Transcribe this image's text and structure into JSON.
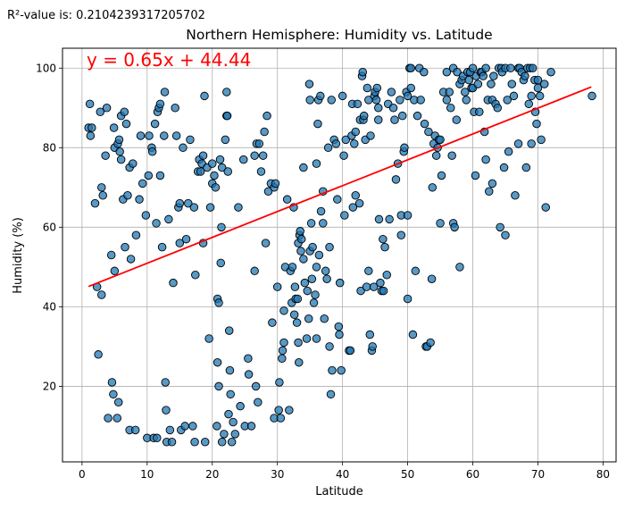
{
  "r2_text": "R²-value is: 0.2104239317205702",
  "chart_data": {
    "type": "scatter",
    "title": "Northern Hemisphere: Humidity vs. Latitude",
    "xlabel": "Latitude",
    "ylabel": "Humidity (%)",
    "xlim": [
      -3,
      82
    ],
    "ylim": [
      1,
      105
    ],
    "xticks": [
      0,
      10,
      20,
      30,
      40,
      50,
      60,
      70,
      80
    ],
    "yticks": [
      20,
      40,
      60,
      80,
      100
    ],
    "grid": true,
    "annotation": "y = 0.65x + 44.44",
    "regression": {
      "slope": 0.65,
      "intercept": 44.44,
      "x_range": [
        1,
        78.2
      ],
      "color": "#ff0000"
    },
    "point_color": "#1f77b4",
    "annotation_color": "#ff0000",
    "points": [
      [
        1,
        85
      ],
      [
        1.2,
        91
      ],
      [
        1.3,
        83
      ],
      [
        1.5,
        85
      ],
      [
        2,
        66
      ],
      [
        2.3,
        45
      ],
      [
        2.5,
        28
      ],
      [
        2.8,
        89
      ],
      [
        3,
        43
      ],
      [
        3,
        70
      ],
      [
        3.2,
        68
      ],
      [
        3.8,
        90
      ],
      [
        3.6,
        78
      ],
      [
        4,
        12
      ],
      [
        4.5,
        53
      ],
      [
        4.6,
        21
      ],
      [
        4.8,
        18
      ],
      [
        5,
        49
      ],
      [
        4.9,
        85
      ],
      [
        5,
        80
      ],
      [
        5.5,
        81
      ],
      [
        5.4,
        12
      ],
      [
        5.6,
        16
      ],
      [
        5.7,
        82
      ],
      [
        5.8,
        79
      ],
      [
        6,
        88
      ],
      [
        6,
        77
      ],
      [
        6.3,
        67
      ],
      [
        6.5,
        89
      ],
      [
        6.6,
        55
      ],
      [
        6.8,
        86
      ],
      [
        7,
        68
      ],
      [
        7.3,
        9
      ],
      [
        7.3,
        75
      ],
      [
        7.5,
        52
      ],
      [
        7.8,
        76
      ],
      [
        8.2,
        9
      ],
      [
        8.3,
        58
      ],
      [
        8.8,
        67
      ],
      [
        9,
        83
      ],
      [
        9.3,
        71
      ],
      [
        9.8,
        63
      ],
      [
        10,
        7
      ],
      [
        10.2,
        73
      ],
      [
        10.3,
        83
      ],
      [
        10.7,
        80
      ],
      [
        10.8,
        79
      ],
      [
        11,
        7
      ],
      [
        11.2,
        86
      ],
      [
        11.5,
        7
      ],
      [
        11.4,
        61
      ],
      [
        11.6,
        89
      ],
      [
        11.8,
        90
      ],
      [
        12,
        91
      ],
      [
        12,
        73
      ],
      [
        12.3,
        55
      ],
      [
        12.6,
        83
      ],
      [
        12.7,
        94
      ],
      [
        12.8,
        21
      ],
      [
        12.9,
        14
      ],
      [
        13,
        6
      ],
      [
        13.3,
        62
      ],
      [
        13.5,
        9
      ],
      [
        13.8,
        6
      ],
      [
        14,
        46
      ],
      [
        14.3,
        90
      ],
      [
        14.5,
        83
      ],
      [
        14.8,
        65
      ],
      [
        15,
        66
      ],
      [
        15,
        56
      ],
      [
        15.2,
        9
      ],
      [
        15.5,
        80
      ],
      [
        15.8,
        10
      ],
      [
        16,
        57
      ],
      [
        16.3,
        66
      ],
      [
        16.6,
        82
      ],
      [
        17,
        10
      ],
      [
        17.2,
        65
      ],
      [
        17.3,
        6
      ],
      [
        17.4,
        48
      ],
      [
        17.8,
        74
      ],
      [
        18,
        77
      ],
      [
        18.2,
        74
      ],
      [
        18.4,
        76
      ],
      [
        18.6,
        78
      ],
      [
        18.8,
        93
      ],
      [
        18.6,
        56
      ],
      [
        18.9,
        6
      ],
      [
        19.2,
        75
      ],
      [
        19.5,
        32
      ],
      [
        19.7,
        65
      ],
      [
        20,
        71
      ],
      [
        20,
        76
      ],
      [
        20.3,
        73
      ],
      [
        20.5,
        70
      ],
      [
        20.7,
        10
      ],
      [
        20.8,
        26
      ],
      [
        20.8,
        42
      ],
      [
        21,
        20
      ],
      [
        21,
        41
      ],
      [
        21.2,
        77
      ],
      [
        21.3,
        51
      ],
      [
        21.4,
        60
      ],
      [
        21.5,
        75
      ],
      [
        21.5,
        6
      ],
      [
        21.8,
        8
      ],
      [
        22,
        82
      ],
      [
        22.2,
        94
      ],
      [
        22.2,
        88
      ],
      [
        22.3,
        88
      ],
      [
        22.4,
        74
      ],
      [
        22.5,
        13
      ],
      [
        22.6,
        34
      ],
      [
        22.7,
        24
      ],
      [
        22.8,
        18
      ],
      [
        23,
        6
      ],
      [
        23.2,
        11
      ],
      [
        23.5,
        8
      ],
      [
        24,
        65
      ],
      [
        24.3,
        15
      ],
      [
        24.8,
        77
      ],
      [
        25,
        10
      ],
      [
        25.5,
        27
      ],
      [
        25.6,
        23
      ],
      [
        26,
        10
      ],
      [
        26.5,
        49
      ],
      [
        26.5,
        78
      ],
      [
        26.7,
        20
      ],
      [
        26.8,
        81
      ],
      [
        27,
        16
      ],
      [
        27.2,
        81
      ],
      [
        27.5,
        74
      ],
      [
        27.8,
        78
      ],
      [
        28,
        84
      ],
      [
        28.2,
        56
      ],
      [
        28.4,
        88
      ],
      [
        28.6,
        69
      ],
      [
        29,
        71
      ],
      [
        29.2,
        36
      ],
      [
        29.5,
        70
      ],
      [
        29.5,
        12
      ],
      [
        29.7,
        71
      ],
      [
        30,
        45
      ],
      [
        30.2,
        14
      ],
      [
        30.3,
        21
      ],
      [
        30.5,
        12
      ],
      [
        30.7,
        27
      ],
      [
        30.8,
        29
      ],
      [
        31,
        39
      ],
      [
        31,
        31
      ],
      [
        31.2,
        50
      ],
      [
        31.5,
        67
      ],
      [
        31.8,
        14
      ],
      [
        32,
        49
      ],
      [
        32.2,
        41
      ],
      [
        32.3,
        50
      ],
      [
        32.5,
        65
      ],
      [
        32.6,
        38
      ],
      [
        32.7,
        45
      ],
      [
        32.8,
        42
      ],
      [
        33,
        36
      ],
      [
        33.1,
        42
      ],
      [
        33.2,
        56
      ],
      [
        33.2,
        31
      ],
      [
        33.3,
        26
      ],
      [
        33.4,
        58
      ],
      [
        33.5,
        59
      ],
      [
        33.6,
        54
      ],
      [
        33.7,
        57
      ],
      [
        34,
        52
      ],
      [
        34,
        75
      ],
      [
        34.2,
        46
      ],
      [
        34.5,
        32
      ],
      [
        34.6,
        44
      ],
      [
        34.8,
        37
      ],
      [
        34.9,
        96
      ],
      [
        35,
        54
      ],
      [
        35,
        92
      ],
      [
        35.2,
        61
      ],
      [
        35.3,
        47
      ],
      [
        35.4,
        55
      ],
      [
        35.6,
        41
      ],
      [
        35.8,
        43
      ],
      [
        36,
        32
      ],
      [
        36,
        76
      ],
      [
        36,
        50
      ],
      [
        36.2,
        86
      ],
      [
        36.3,
        92
      ],
      [
        36.4,
        53
      ],
      [
        36.6,
        93
      ],
      [
        36.7,
        64
      ],
      [
        37,
        61
      ],
      [
        37,
        69
      ],
      [
        37.2,
        37
      ],
      [
        37.4,
        49
      ],
      [
        37.6,
        47
      ],
      [
        37.8,
        80
      ],
      [
        38,
        55
      ],
      [
        38,
        30
      ],
      [
        38.2,
        18
      ],
      [
        38.3,
        92
      ],
      [
        38.4,
        24
      ],
      [
        38.7,
        82
      ],
      [
        39,
        81
      ],
      [
        39.2,
        67
      ],
      [
        39.4,
        35
      ],
      [
        39.5,
        33
      ],
      [
        39.6,
        46
      ],
      [
        39.8,
        24
      ],
      [
        40,
        93
      ],
      [
        40.2,
        78
      ],
      [
        40.3,
        63
      ],
      [
        40.5,
        82
      ],
      [
        41,
        29
      ],
      [
        41.2,
        29
      ],
      [
        41.4,
        83
      ],
      [
        41.5,
        91
      ],
      [
        41.6,
        65
      ],
      [
        41.8,
        81
      ],
      [
        42,
        84
      ],
      [
        42,
        68
      ],
      [
        42.3,
        91
      ],
      [
        42.6,
        66
      ],
      [
        42.7,
        87
      ],
      [
        42.8,
        44
      ],
      [
        43,
        98
      ],
      [
        43.1,
        99
      ],
      [
        43.2,
        87
      ],
      [
        43.3,
        88
      ],
      [
        43.5,
        82
      ],
      [
        43.7,
        45
      ],
      [
        43.8,
        95
      ],
      [
        44,
        49
      ],
      [
        44,
        92
      ],
      [
        44.2,
        33
      ],
      [
        44.3,
        83
      ],
      [
        44.5,
        29
      ],
      [
        44.6,
        30
      ],
      [
        44.8,
        45
      ],
      [
        44.9,
        93
      ],
      [
        45,
        94
      ],
      [
        45.2,
        92
      ],
      [
        45.3,
        95
      ],
      [
        45.5,
        90
      ],
      [
        45.5,
        87
      ],
      [
        45.6,
        62
      ],
      [
        45.8,
        46
      ],
      [
        46,
        44
      ],
      [
        46.2,
        57
      ],
      [
        46.3,
        44
      ],
      [
        46.5,
        55
      ],
      [
        46.8,
        48
      ],
      [
        47,
        91
      ],
      [
        47.2,
        62
      ],
      [
        47.5,
        94
      ],
      [
        47.8,
        90
      ],
      [
        48,
        87
      ],
      [
        48.2,
        72
      ],
      [
        48.5,
        76
      ],
      [
        48.8,
        92
      ],
      [
        49,
        63
      ],
      [
        49,
        58
      ],
      [
        49.2,
        88
      ],
      [
        49.4,
        79
      ],
      [
        49.5,
        80
      ],
      [
        49.8,
        94
      ],
      [
        50,
        42
      ],
      [
        50,
        93
      ],
      [
        50,
        63
      ],
      [
        50.3,
        100
      ],
      [
        50.5,
        100
      ],
      [
        50.5,
        95
      ],
      [
        50.8,
        33
      ],
      [
        51,
        92
      ],
      [
        51.2,
        49
      ],
      [
        51.5,
        88
      ],
      [
        51.8,
        100
      ],
      [
        52,
        92
      ],
      [
        52.5,
        99
      ],
      [
        52.6,
        86
      ],
      [
        52.8,
        30
      ],
      [
        53,
        30
      ],
      [
        53.2,
        84
      ],
      [
        53.5,
        31
      ],
      [
        53.7,
        47
      ],
      [
        53.8,
        70
      ],
      [
        54,
        81
      ],
      [
        54.2,
        83
      ],
      [
        54.4,
        78
      ],
      [
        54.6,
        80
      ],
      [
        54.8,
        82
      ],
      [
        55,
        61
      ],
      [
        55,
        82
      ],
      [
        55.2,
        73
      ],
      [
        55.5,
        94
      ],
      [
        56,
        92
      ],
      [
        56,
        99
      ],
      [
        56.4,
        94
      ],
      [
        56.6,
        90
      ],
      [
        56.8,
        78
      ],
      [
        57,
        100
      ],
      [
        57,
        61
      ],
      [
        57.2,
        60
      ],
      [
        57.5,
        87
      ],
      [
        57.6,
        99
      ],
      [
        58,
        50
      ],
      [
        58,
        96
      ],
      [
        58.3,
        97
      ],
      [
        58.5,
        98
      ],
      [
        58.8,
        94
      ],
      [
        59,
        92
      ],
      [
        59.2,
        99
      ],
      [
        59.4,
        97
      ],
      [
        59.6,
        99
      ],
      [
        59.8,
        95
      ],
      [
        60,
        100
      ],
      [
        60,
        95
      ],
      [
        60.2,
        89
      ],
      [
        60.4,
        73
      ],
      [
        60.5,
        98
      ],
      [
        60.8,
        96
      ],
      [
        61,
        89
      ],
      [
        61.2,
        99
      ],
      [
        61.4,
        99
      ],
      [
        61.6,
        98
      ],
      [
        61.8,
        84
      ],
      [
        62,
        100
      ],
      [
        62,
        77
      ],
      [
        62.3,
        92
      ],
      [
        62.5,
        69
      ],
      [
        62.8,
        96
      ],
      [
        63,
        92
      ],
      [
        63,
        71
      ],
      [
        63.2,
        98
      ],
      [
        63.5,
        91
      ],
      [
        63.8,
        90
      ],
      [
        64,
        100
      ],
      [
        64.2,
        60
      ],
      [
        64.4,
        100
      ],
      [
        64.5,
        99
      ],
      [
        64.8,
        75
      ],
      [
        65,
        58
      ],
      [
        65,
        100
      ],
      [
        65.3,
        92
      ],
      [
        65.5,
        79
      ],
      [
        65.8,
        100
      ],
      [
        66,
        96
      ],
      [
        66.3,
        93
      ],
      [
        66.5,
        68
      ],
      [
        67,
        100
      ],
      [
        67,
        81
      ],
      [
        67.2,
        100
      ],
      [
        67.5,
        99
      ],
      [
        67.8,
        97
      ],
      [
        68,
        98
      ],
      [
        68.2,
        75
      ],
      [
        68.4,
        100
      ],
      [
        68.6,
        91
      ],
      [
        68.8,
        100
      ],
      [
        69,
        93
      ],
      [
        69,
        81
      ],
      [
        69.2,
        100
      ],
      [
        69.5,
        97
      ],
      [
        69.6,
        89
      ],
      [
        69.8,
        86
      ],
      [
        70,
        97
      ],
      [
        70,
        95
      ],
      [
        70.3,
        93
      ],
      [
        70.5,
        82
      ],
      [
        71,
        96
      ],
      [
        71.2,
        65
      ],
      [
        72,
        99
      ],
      [
        78.3,
        93
      ]
    ]
  }
}
